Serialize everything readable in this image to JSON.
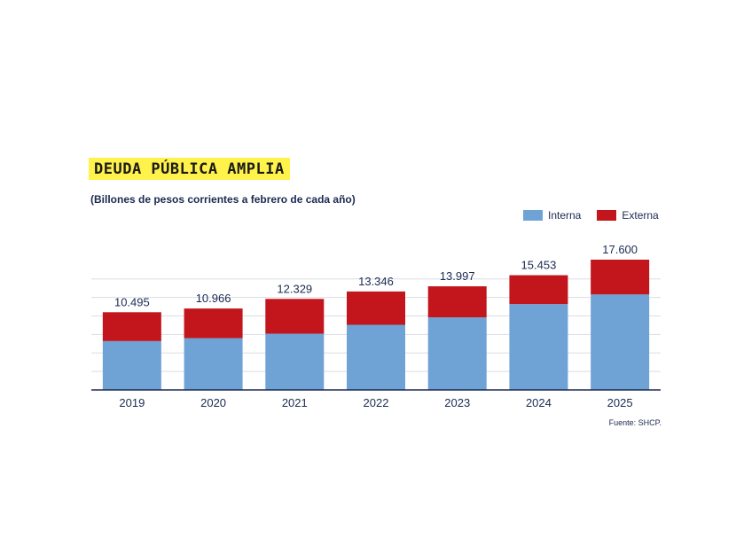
{
  "title": "DEUDA PÚBLICA AMPLIA",
  "subtitle": "(Billones de pesos corrientes a febrero de cada año)",
  "source": "Fuente: SHCP.",
  "colors": {
    "interna": "#6fa3d6",
    "externa": "#c2161c",
    "title_highlight": "#fff24a",
    "text": "#1c2a52"
  },
  "chart_data": {
    "type": "bar",
    "stacked": true,
    "categories": [
      "2019",
      "2020",
      "2021",
      "2022",
      "2023",
      "2024",
      "2025"
    ],
    "series": [
      {
        "name": "Interna",
        "values": [
          6.6,
          7.0,
          7.6,
          8.8,
          9.8,
          11.6,
          12.9
        ]
      },
      {
        "name": "Externa",
        "values": [
          3.9,
          4.0,
          4.7,
          4.5,
          4.2,
          3.9,
          4.7
        ]
      }
    ],
    "totals": [
      "10.495",
      "10.966",
      "12.329",
      "13.346",
      "13.997",
      "15.453",
      "17.600"
    ],
    "ylim": [
      0,
      17.6
    ],
    "legend": "top-right",
    "grid": true
  }
}
